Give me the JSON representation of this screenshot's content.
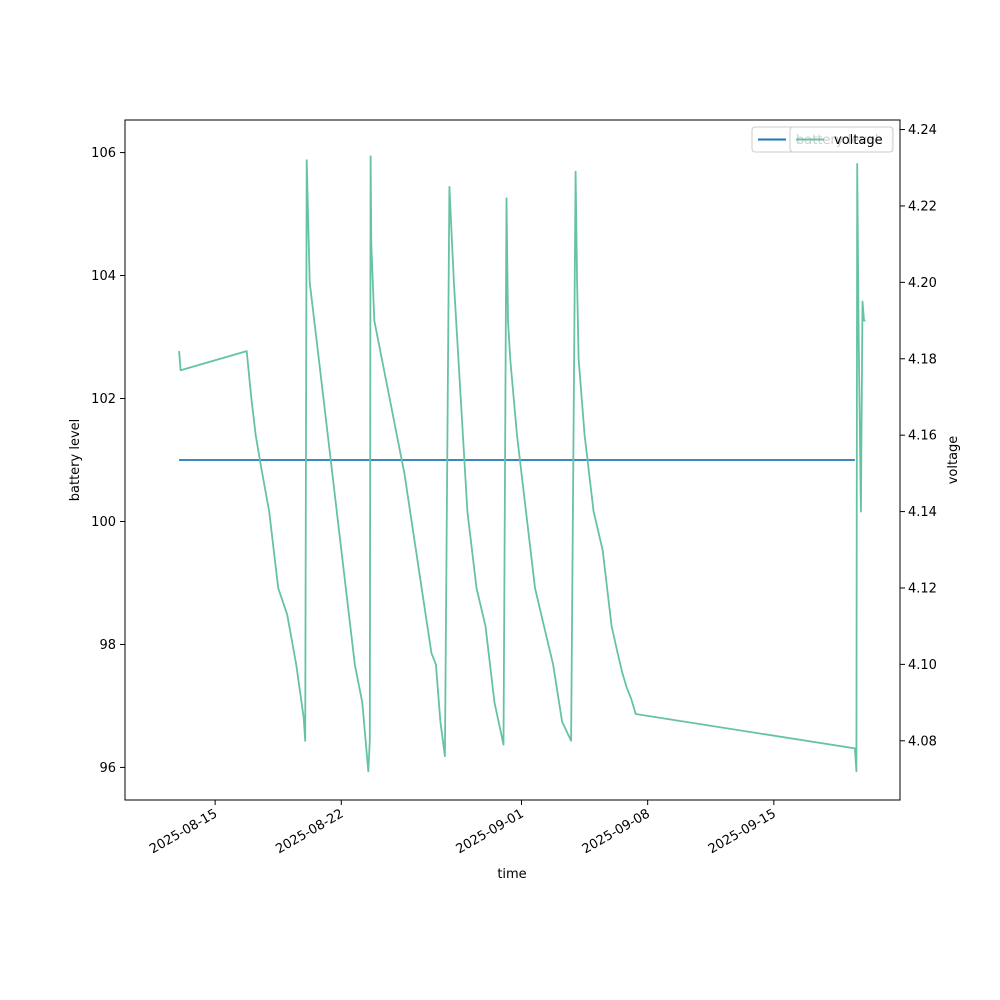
{
  "chart_data": {
    "type": "line",
    "title": "",
    "xlabel": "time",
    "ylabel_left": "battery level",
    "ylabel_right": "voltage",
    "x_ticks": [
      "2025-08-15",
      "2025-08-22",
      "2025-09-01",
      "2025-09-08",
      "2025-09-15"
    ],
    "xlim": [
      "2025-08-10T00:00",
      "2025-09-22T00:00"
    ],
    "ylim_left": [
      95.47,
      106.53
    ],
    "ylim_right": [
      4.0645,
      4.2425
    ],
    "y_ticks_left": [
      "96",
      "98",
      "100",
      "102",
      "104",
      "106"
    ],
    "y_ticks_right": [
      "4.08",
      "4.10",
      "4.12",
      "4.14",
      "4.16",
      "4.18",
      "4.20",
      "4.22",
      "4.24"
    ],
    "legend_placement": "top-right",
    "series": [
      {
        "name": "battery level",
        "axis": "left",
        "color": "#1f77b4",
        "x": [
          "2025-08-13T00:00",
          "2025-09-19T12:00"
        ],
        "values": [
          101,
          101
        ]
      },
      {
        "name": "voltage",
        "axis": "right",
        "color": "#66c2a5",
        "x": [
          "2025-08-13T00:00",
          "2025-08-13T02:00",
          "2025-08-16T18:00",
          "2025-08-17T00:00",
          "2025-08-17T06:00",
          "2025-08-17T12:00",
          "2025-08-18T00:00",
          "2025-08-18T12:00",
          "2025-08-19T00:00",
          "2025-08-19T12:00",
          "2025-08-19T22:00",
          "2025-08-20T00:00",
          "2025-08-20T01:00",
          "2025-08-20T02:00",
          "2025-08-20T06:00",
          "2025-08-20T18:00",
          "2025-08-21T06:00",
          "2025-08-21T18:00",
          "2025-08-22T06:00",
          "2025-08-22T18:00",
          "2025-08-23T04:00",
          "2025-08-23T12:00",
          "2025-08-23T14:00",
          "2025-08-23T15:00",
          "2025-08-23T16:00",
          "2025-08-23T20:00",
          "2025-08-25T12:00",
          "2025-08-27T00:00",
          "2025-08-27T06:00",
          "2025-08-27T12:00",
          "2025-08-27T18:00",
          "2025-08-28T00:00",
          "2025-08-28T06:00",
          "2025-08-28T12:00",
          "2025-08-28T18:00",
          "2025-08-29T00:00",
          "2025-08-29T12:00",
          "2025-08-30T00:00",
          "2025-08-30T12:00",
          "2025-08-31T00:00",
          "2025-08-31T04:00",
          "2025-08-31T06:00",
          "2025-08-31T09:00",
          "2025-08-31T18:00",
          "2025-09-01T06:00",
          "2025-09-01T18:00",
          "2025-09-02T06:00",
          "2025-09-02T18:00",
          "2025-09-03T06:00",
          "2025-09-03T18:00",
          "2025-09-04T00:00",
          "2025-09-04T02:00",
          "2025-09-04T04:00",
          "2025-09-04T06:00",
          "2025-09-04T12:00",
          "2025-09-05T00:00",
          "2025-09-05T12:00",
          "2025-09-06T00:00",
          "2025-09-06T08:00",
          "2025-09-06T14:00",
          "2025-09-06T20:00",
          "2025-09-07T02:00",
          "2025-09-07T08:00",
          "2025-09-19T12:00",
          "2025-09-19T14:00",
          "2025-09-19T15:00",
          "2025-09-19T17:00",
          "2025-09-19T20:00",
          "2025-09-19T22:00",
          "2025-09-20T00:00",
          "2025-09-20T02:00"
        ],
        "values": [
          4.182,
          4.177,
          4.182,
          4.17,
          4.16,
          4.153,
          4.14,
          4.12,
          4.113,
          4.1,
          4.086,
          4.08,
          4.16,
          4.232,
          4.2,
          4.18,
          4.16,
          4.14,
          4.12,
          4.1,
          4.09,
          4.072,
          4.08,
          4.233,
          4.21,
          4.19,
          4.15,
          4.103,
          4.1,
          4.085,
          4.076,
          4.225,
          4.2,
          4.18,
          4.16,
          4.14,
          4.12,
          4.11,
          4.09,
          4.079,
          4.222,
          4.19,
          4.18,
          4.16,
          4.14,
          4.12,
          4.11,
          4.1,
          4.085,
          4.08,
          4.229,
          4.2,
          4.18,
          4.175,
          4.16,
          4.14,
          4.13,
          4.11,
          4.103,
          4.098,
          4.094,
          4.091,
          4.087,
          4.078,
          4.072,
          4.231,
          4.185,
          4.14,
          4.195,
          4.19,
          4.19
        ]
      }
    ]
  }
}
